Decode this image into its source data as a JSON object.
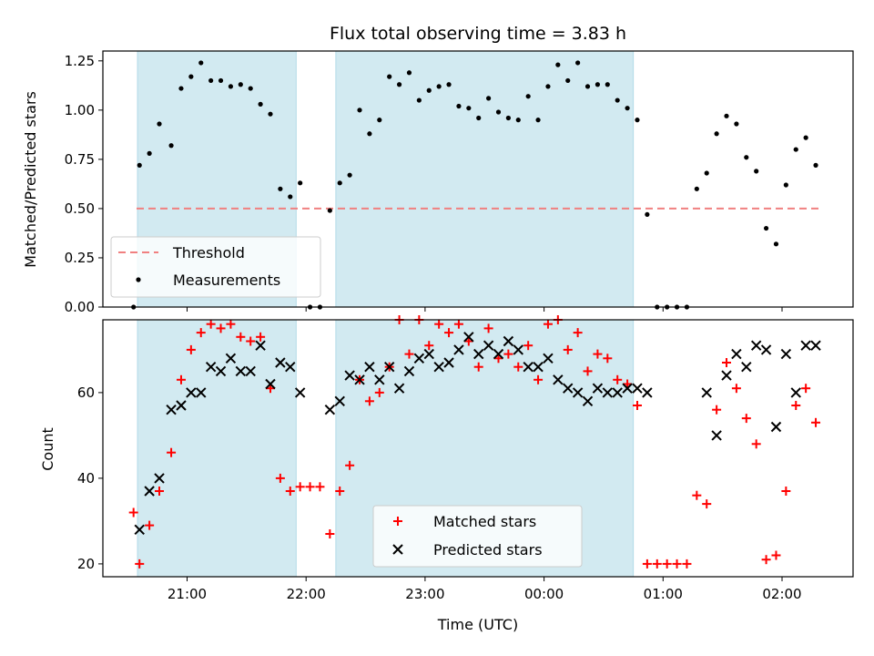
{
  "chart_data": [
    {
      "type": "scatter",
      "title": "Flux total observing time = 3.83 h",
      "xlabel": "",
      "ylabel": "Matched/Predicted stars",
      "ylim": [
        0.0,
        1.3
      ],
      "yticks": [
        "0.00",
        "0.25",
        "0.50",
        "0.75",
        "1.00",
        "1.25"
      ],
      "shaded_intervals": [
        [
          "20:35",
          "21:55"
        ],
        [
          "22:15",
          "00:45"
        ]
      ],
      "threshold": {
        "name": "Threshold",
        "value": 0.5,
        "color": "#f08080"
      },
      "series": [
        {
          "name": "Measurements",
          "color": "#000000",
          "x": [
            "20:33",
            "20:36",
            "20:41",
            "20:46",
            "20:52",
            "20:57",
            "21:02",
            "21:07",
            "21:12",
            "21:17",
            "21:22",
            "21:27",
            "21:32",
            "21:37",
            "21:42",
            "21:47",
            "21:52",
            "21:57",
            "22:02",
            "22:07",
            "22:12",
            "22:17",
            "22:22",
            "22:27",
            "22:32",
            "22:37",
            "22:42",
            "22:47",
            "22:52",
            "22:57",
            "23:02",
            "23:07",
            "23:12",
            "23:17",
            "23:22",
            "23:27",
            "23:32",
            "23:37",
            "23:42",
            "23:47",
            "23:52",
            "23:57",
            "00:02",
            "00:07",
            "00:12",
            "00:17",
            "00:22",
            "00:27",
            "00:32",
            "00:37",
            "00:42",
            "00:47",
            "00:52",
            "00:57",
            "01:02",
            "01:07",
            "01:12",
            "01:17",
            "01:22",
            "01:27",
            "01:32",
            "01:37",
            "01:42",
            "01:47",
            "01:52",
            "01:57",
            "02:02",
            "02:07",
            "02:12",
            "02:17"
          ],
          "y": [
            0.0,
            0.72,
            0.78,
            0.93,
            0.82,
            1.11,
            1.17,
            1.24,
            1.15,
            1.15,
            1.12,
            1.13,
            1.11,
            1.03,
            0.98,
            0.6,
            0.56,
            0.63,
            0.0,
            0.0,
            0.49,
            0.63,
            0.67,
            1.0,
            0.88,
            0.95,
            1.17,
            1.13,
            1.19,
            1.05,
            1.1,
            1.12,
            1.13,
            1.02,
            1.01,
            0.96,
            1.06,
            0.99,
            0.96,
            0.95,
            1.07,
            0.95,
            1.12,
            1.23,
            1.15,
            1.24,
            1.12,
            1.13,
            1.13,
            1.05,
            1.01,
            0.95,
            0.47,
            0.0,
            0.0,
            0.0,
            0.0,
            0.6,
            0.68,
            0.88,
            0.97,
            0.93,
            0.76,
            0.69,
            0.4,
            0.32,
            0.62,
            0.8,
            0.86,
            0.72
          ]
        }
      ],
      "legend": [
        "Threshold",
        "Measurements"
      ],
      "legend_placement": "lower-left"
    },
    {
      "type": "scatter",
      "title": "",
      "xlabel": "Time (UTC)",
      "ylabel": "Count",
      "ylim": [
        17,
        77
      ],
      "yticks": [
        "20",
        "40",
        "60"
      ],
      "xticks": [
        "21:00",
        "22:00",
        "23:00",
        "00:00",
        "01:00",
        "02:00"
      ],
      "shaded_intervals": [
        [
          "20:35",
          "21:55"
        ],
        [
          "22:15",
          "00:45"
        ]
      ],
      "series": [
        {
          "name": "Matched stars",
          "marker": "plus",
          "color": "#ff0000",
          "x": [
            "20:33",
            "20:36",
            "20:41",
            "20:46",
            "20:52",
            "20:57",
            "21:02",
            "21:07",
            "21:12",
            "21:17",
            "21:22",
            "21:27",
            "21:32",
            "21:37",
            "21:42",
            "21:47",
            "21:52",
            "21:57",
            "22:02",
            "22:07",
            "22:12",
            "22:17",
            "22:22",
            "22:27",
            "22:32",
            "22:37",
            "22:42",
            "22:47",
            "22:52",
            "22:57",
            "23:02",
            "23:07",
            "23:12",
            "23:17",
            "23:22",
            "23:27",
            "23:32",
            "23:37",
            "23:42",
            "23:47",
            "23:52",
            "23:57",
            "00:02",
            "00:07",
            "00:12",
            "00:17",
            "00:22",
            "00:27",
            "00:32",
            "00:37",
            "00:42",
            "00:47",
            "00:52",
            "00:57",
            "01:02",
            "01:07",
            "01:12",
            "01:17",
            "01:22",
            "01:27",
            "01:32",
            "01:37",
            "01:42",
            "01:47",
            "01:52",
            "01:57",
            "02:02",
            "02:07",
            "02:12",
            "02:17"
          ],
          "y": [
            32,
            20,
            29,
            37,
            46,
            63,
            70,
            74,
            76,
            75,
            76,
            73,
            72,
            73,
            61,
            40,
            37,
            38,
            38,
            38,
            27,
            37,
            43,
            63,
            58,
            60,
            66,
            77,
            69,
            77,
            71,
            76,
            74,
            76,
            72,
            66,
            75,
            68,
            69,
            66,
            71,
            63,
            76,
            77,
            70,
            74,
            65,
            69,
            68,
            63,
            62,
            57,
            20,
            20,
            20,
            20,
            20,
            36,
            34,
            56,
            67,
            61,
            54,
            48,
            21,
            22,
            37,
            57,
            61,
            53
          ]
        },
        {
          "name": "Predicted stars",
          "marker": "x",
          "color": "#000000",
          "x": [
            "20:36",
            "20:41",
            "20:46",
            "20:52",
            "20:57",
            "21:02",
            "21:07",
            "21:12",
            "21:17",
            "21:22",
            "21:27",
            "21:32",
            "21:37",
            "21:42",
            "21:47",
            "21:52",
            "21:57",
            "22:12",
            "22:17",
            "22:22",
            "22:27",
            "22:32",
            "22:37",
            "22:42",
            "22:47",
            "22:52",
            "22:57",
            "23:02",
            "23:07",
            "23:12",
            "23:17",
            "23:22",
            "23:27",
            "23:32",
            "23:37",
            "23:42",
            "23:47",
            "23:52",
            "23:57",
            "00:02",
            "00:07",
            "00:12",
            "00:17",
            "00:22",
            "00:27",
            "00:32",
            "00:37",
            "00:42",
            "00:47",
            "00:52",
            "01:22",
            "01:27",
            "01:32",
            "01:37",
            "01:42",
            "01:47",
            "01:52",
            "01:57",
            "02:02",
            "02:07",
            "02:12",
            "02:17"
          ],
          "y": [
            28,
            37,
            40,
            56,
            57,
            60,
            60,
            66,
            65,
            68,
            65,
            65,
            71,
            62,
            67,
            66,
            60,
            56,
            58,
            64,
            63,
            66,
            63,
            66,
            61,
            65,
            68,
            69,
            66,
            67,
            70,
            73,
            69,
            71,
            69,
            72,
            70,
            66,
            66,
            68,
            63,
            61,
            60,
            58,
            61,
            60,
            60,
            61,
            61,
            60,
            60,
            50,
            64,
            69,
            66,
            71,
            70,
            52,
            69,
            60,
            71,
            71
          ]
        }
      ],
      "legend": [
        "Matched stars",
        "Predicted stars"
      ],
      "legend_placement": "lower-center"
    }
  ],
  "colors": {
    "shade": "#add8e6",
    "threshold": "#f08080",
    "matched": "#ff0000",
    "predicted": "#000000"
  }
}
